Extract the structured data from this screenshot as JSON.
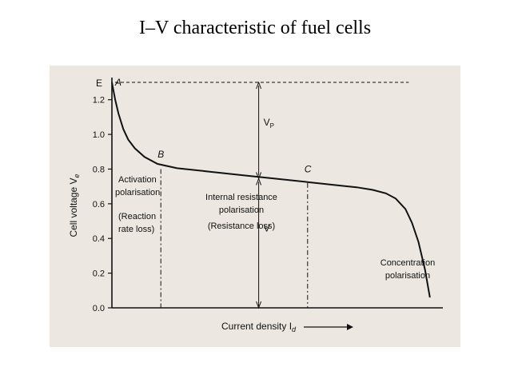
{
  "slide": {
    "title": "I–V characteristic of fuel cells"
  },
  "chart_data": {
    "type": "line",
    "xlabel": "Current density I",
    "xlabel_subscript": "d",
    "ylabel": "Cell voltage V",
    "ylabel_subscript": "e",
    "ylim": [
      0,
      1.3
    ],
    "yticks": [
      "0.0",
      "0.2",
      "0.4",
      "0.6",
      "0.8",
      "1.0",
      "1.2"
    ],
    "ytick_values": [
      0.0,
      0.2,
      0.4,
      0.6,
      0.8,
      1.0,
      1.2
    ],
    "E_level": 1.3,
    "xlim": [
      0,
      1
    ],
    "series": [
      {
        "x": [
          0.0,
          0.01,
          0.02,
          0.035,
          0.05,
          0.07,
          0.1,
          0.14,
          0.2,
          0.3,
          0.4,
          0.5,
          0.6,
          0.7,
          0.75,
          0.8,
          0.84,
          0.87,
          0.9,
          0.92,
          0.94,
          0.96,
          0.975
        ],
        "y": [
          1.3,
          1.2,
          1.12,
          1.03,
          0.97,
          0.92,
          0.87,
          0.83,
          0.805,
          0.785,
          0.765,
          0.745,
          0.725,
          0.705,
          0.695,
          0.68,
          0.66,
          0.63,
          0.57,
          0.49,
          0.38,
          0.22,
          0.06
        ]
      }
    ],
    "point_labels": [
      {
        "text": "E",
        "x": 0.0,
        "y": 1.3
      },
      {
        "text": "A",
        "x": 0.005,
        "y": 1.3
      },
      {
        "text": "B",
        "x": 0.15,
        "y": 0.82
      },
      {
        "text": "C",
        "x": 0.6,
        "y": 0.725
      }
    ],
    "vlines_x": [
      0.15,
      0.6,
      0.45
    ],
    "arrow_labels": {
      "vp": "V",
      "vp_sub": "P",
      "v": "V"
    },
    "annotations": {
      "activation": [
        "Activation",
        "polarisation",
        "(Reaction",
        "rate loss)"
      ],
      "internal": [
        "Internal resistance",
        "polarisation",
        "(Resistance loss)"
      ],
      "concentration": [
        "Concentration",
        "polarisation"
      ]
    },
    "grid": false
  }
}
